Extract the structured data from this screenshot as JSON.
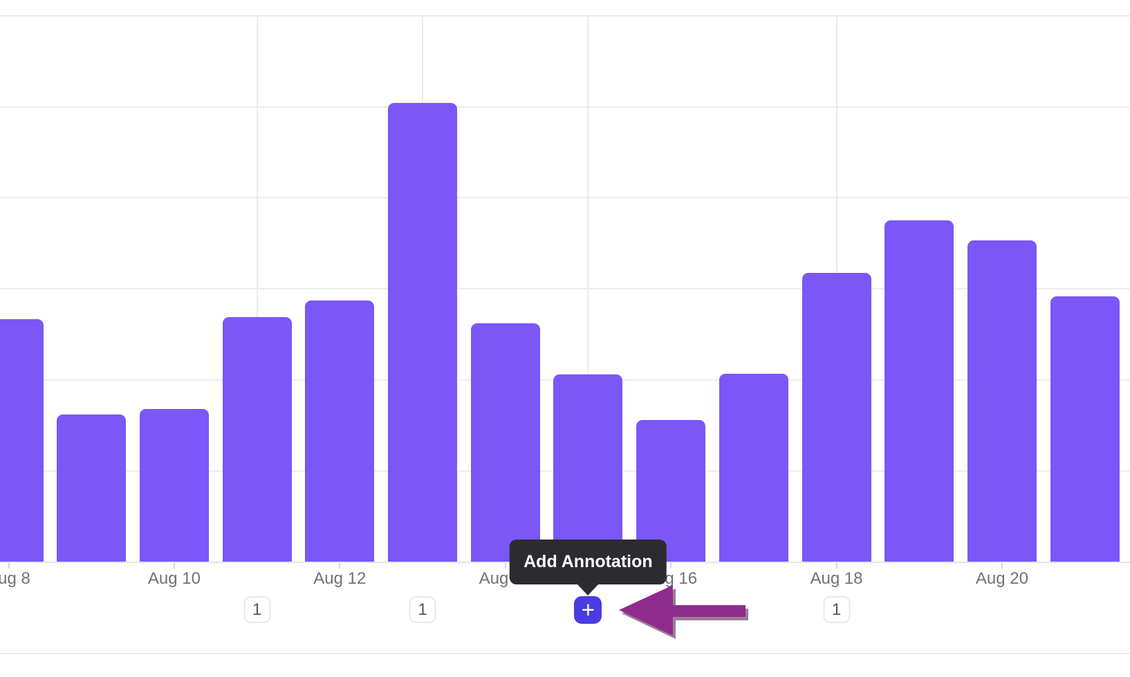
{
  "chart_data": {
    "type": "bar",
    "title": "",
    "xlabel": "",
    "ylabel": "",
    "categories": [
      "Aug 8",
      "Aug 9",
      "Aug 10",
      "Aug 11",
      "Aug 12",
      "Aug 13",
      "Aug 14",
      "Aug 15",
      "Aug 16",
      "Aug 17",
      "Aug 18",
      "Aug 19",
      "Aug 20",
      "Aug 21"
    ],
    "values": [
      2.67,
      1.62,
      1.68,
      2.69,
      2.87,
      5.04,
      2.62,
      2.06,
      1.56,
      2.07,
      3.18,
      3.75,
      3.53,
      2.92
    ],
    "y_unit_note": "values in horizontal-gridline units; y-axis labels are cropped out of view",
    "ylim": [
      0,
      6
    ],
    "grid": true,
    "legend": null,
    "x_axis_tick_labels": [
      "Aug 8",
      "Aug 10",
      "Aug 12",
      "Aug 14",
      "Aug 16",
      "Aug 18",
      "Aug 20"
    ],
    "bar_color": "#7B57F8",
    "annotation_marker_categories": [
      "Aug 11",
      "Aug 13",
      "Aug 15",
      "Aug 18"
    ]
  },
  "ui": {
    "annotation_badges": [
      {
        "category": "Aug 11",
        "count": "1"
      },
      {
        "category": "Aug 13",
        "count": "1"
      },
      {
        "category": "Aug 18",
        "count": "1"
      }
    ],
    "add_annotation": {
      "category": "Aug 15",
      "tooltip": "Add Annotation",
      "button_glyph": "+",
      "button_color": "#4B3BE2"
    },
    "arrow": {
      "color": "#8F2B8D",
      "points_at": "add-annotation-button"
    },
    "colors": {
      "bar": "#7B57F8",
      "gridline": "#ECECEF",
      "axis_line": "#E3E3E7",
      "tick": "#D9D9DD",
      "x_label_text": "#71717A",
      "badge_text": "#55555E",
      "badge_border": "#E9E9EC",
      "tooltip_bg": "#2C2C30",
      "tooltip_text": "#FFFFFF",
      "plus_button_bg": "#4B3BE2",
      "arrow_fill": "#8F2B8D",
      "background": "#FFFFFF"
    }
  }
}
